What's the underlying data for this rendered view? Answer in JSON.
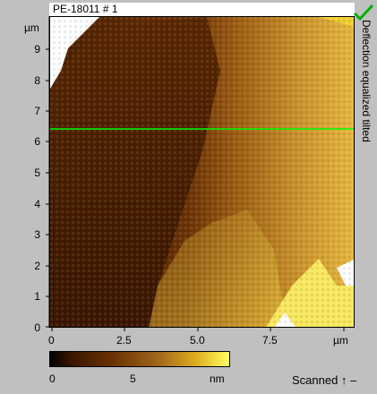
{
  "header": {
    "title": "PE-18011 # 1"
  },
  "image_panel": {
    "mode_label": "Deflection equalized tilted",
    "colors": {
      "dark": "#3a1600",
      "mid": "#9a5a12",
      "light": "#e0b020",
      "bright": "#ffff60",
      "profile_line": "#00ff00"
    },
    "status_icon": "check-icon"
  },
  "y_axis": {
    "unit": "µm",
    "ticks": [
      "9",
      "8",
      "7",
      "6",
      "5",
      "4",
      "3",
      "2",
      "1",
      "0"
    ]
  },
  "x_axis": {
    "unit": "µm",
    "ticks": [
      "0",
      "2.5",
      "5.0",
      "7.5"
    ]
  },
  "colorbar": {
    "min_label": "0",
    "mid_label": "5",
    "unit": "nm"
  },
  "footer": {
    "scanned_label": "Scanned ↑ –"
  }
}
